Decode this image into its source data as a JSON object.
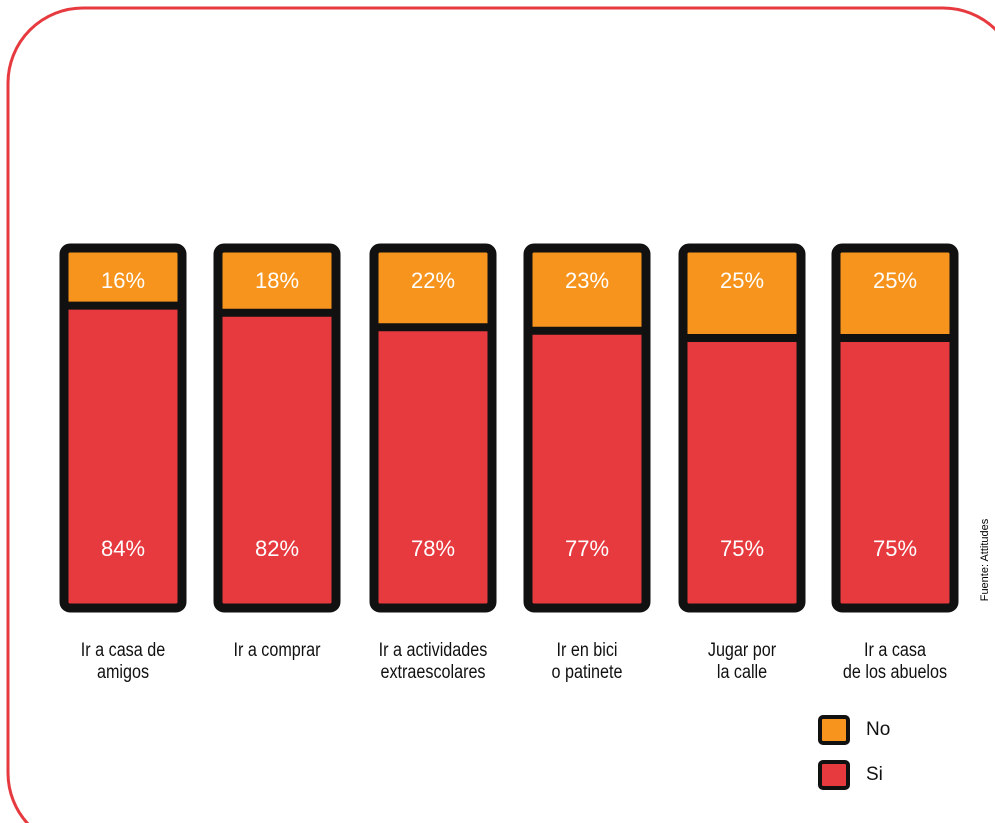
{
  "chart_data": {
    "type": "stacked_bar",
    "categories": [
      "Ir a casa de\namigos",
      "Ir a comprar",
      "Ir a actividades\nextraescolares",
      "Ir en bici\no patinete",
      "Jugar por\nla calle",
      "Ir a casa\nde los abuelos"
    ],
    "series": [
      {
        "name": "Si",
        "color": "#e63a3f",
        "values": [
          84,
          82,
          78,
          77,
          75,
          75
        ],
        "value_labels": [
          "84%",
          "82%",
          "78%",
          "77%",
          "75%",
          "75%"
        ]
      },
      {
        "name": "No",
        "color": "#f7941d",
        "values": [
          16,
          18,
          22,
          23,
          25,
          25
        ],
        "value_labels": [
          "16%",
          "18%",
          "22%",
          "23%",
          "25%",
          "25%"
        ]
      }
    ],
    "legend_order": [
      1,
      0
    ],
    "source": "Fuente: Attitudes"
  }
}
